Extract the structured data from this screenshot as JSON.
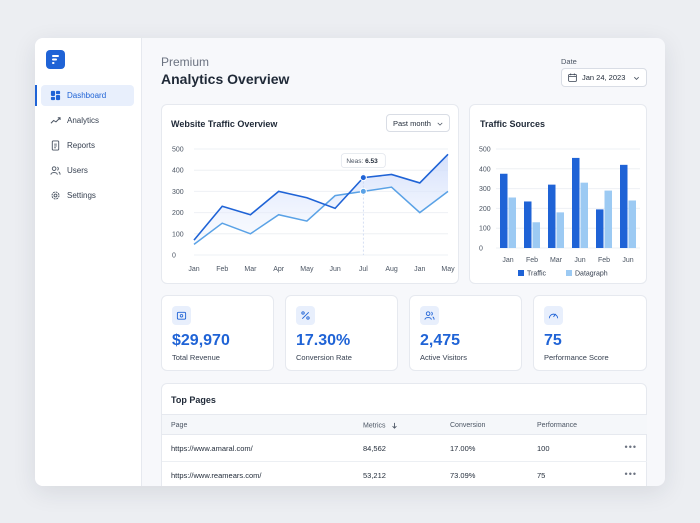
{
  "sidebar": {
    "items": [
      {
        "label": "Dashboard",
        "icon": "dashboard-icon",
        "active": true
      },
      {
        "label": "Analytics",
        "icon": "trend-icon",
        "active": false
      },
      {
        "label": "Reports",
        "icon": "document-icon",
        "active": false
      },
      {
        "label": "Users",
        "icon": "users-icon",
        "active": false
      },
      {
        "label": "Settings",
        "icon": "gear-icon",
        "active": false
      }
    ]
  },
  "header": {
    "subtitle": "Premium",
    "title": "Analytics Overview",
    "date_label": "Date",
    "date_value": "Jan 24, 2023"
  },
  "traffic_card": {
    "title": "Website Traffic Overview",
    "range_select": "Past month",
    "tooltip_label": "Neas:",
    "tooltip_value": "6.53"
  },
  "sources_card": {
    "title": "Traffic Sources"
  },
  "stats": [
    {
      "value": "$29,970",
      "label": "Total Revenue",
      "icon": "wallet-icon"
    },
    {
      "value": "17.30%",
      "label": "Conversion Rate",
      "icon": "percent-icon"
    },
    {
      "value": "2,475",
      "label": "Active Visitors",
      "icon": "users-icon"
    },
    {
      "value": "75",
      "label": "Performance Score",
      "icon": "gauge-icon"
    }
  ],
  "top_pages": {
    "title": "Top Pages",
    "columns": [
      "Page",
      "Metrics",
      "Conversion",
      "Performance"
    ],
    "rows": [
      {
        "page": "https://www.amaral.com/",
        "metrics": "84,562",
        "conversion": "17.00%",
        "performance": "100"
      },
      {
        "page": "https://www.reamears.com/",
        "metrics": "53,212",
        "conversion": "73.09%",
        "performance": "75"
      }
    ]
  },
  "colors": {
    "accent": "#1f63d6",
    "light_series": "#9ccaf3",
    "mid_series": "#5aa2e6"
  },
  "chart_data": [
    {
      "type": "line",
      "categories": [
        "Jan",
        "Feb",
        "Mar",
        "Apr",
        "May",
        "Jun",
        "Jul",
        "Aug",
        "Jan",
        "May"
      ],
      "series": [
        {
          "values": [
            70,
            230,
            190,
            300,
            270,
            220,
            365,
            380,
            340,
            475
          ]
        },
        {
          "values": [
            50,
            150,
            100,
            190,
            160,
            280,
            300,
            320,
            200,
            300
          ]
        }
      ],
      "ylim": [
        0,
        500
      ],
      "yticks": [
        "500",
        "400",
        "300",
        "200",
        "100",
        "0"
      ],
      "grid": true
    },
    {
      "type": "bar",
      "categories": [
        "Jan",
        "Feb",
        "Mar",
        "Jun",
        "Feb",
        "Jun"
      ],
      "series": [
        {
          "name": "Traffic",
          "values": [
            375,
            235,
            320,
            455,
            195,
            420
          ]
        },
        {
          "name": "Datagraph",
          "values": [
            255,
            130,
            180,
            330,
            290,
            240
          ]
        }
      ],
      "ylim": [
        0,
        500
      ],
      "yticks": [
        "500",
        "400",
        "300",
        "200",
        "100",
        "0"
      ],
      "legend": "bottom"
    }
  ]
}
